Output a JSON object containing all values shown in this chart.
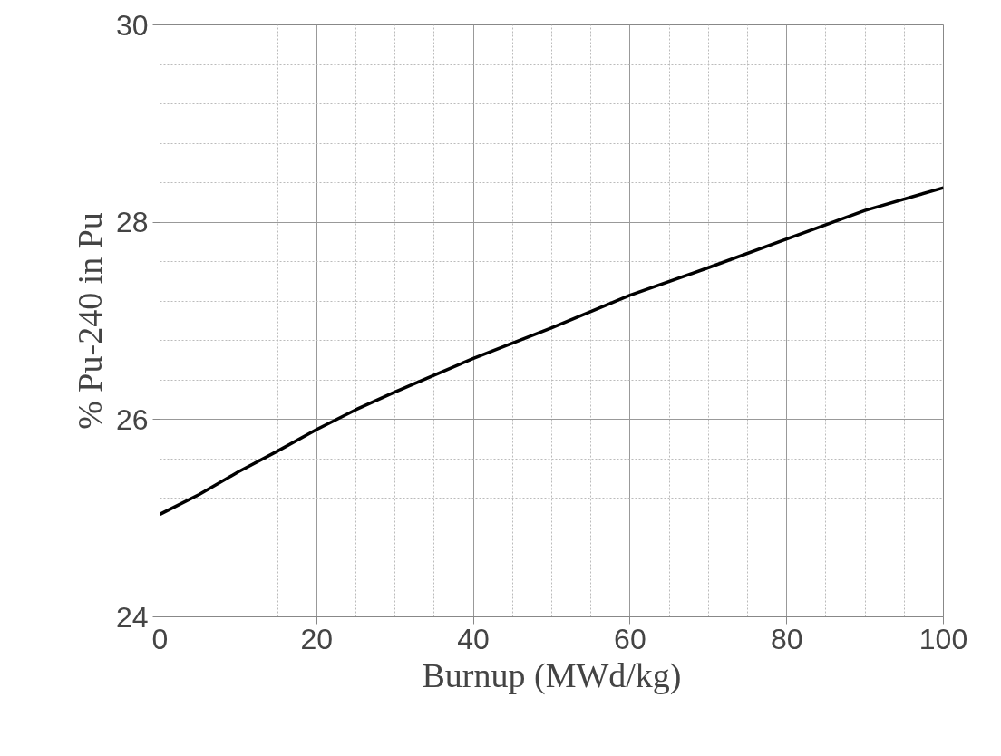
{
  "chart_data": {
    "type": "line",
    "xlabel": "Burnup (MWd/kg)",
    "ylabel": "% Pu-240 in Pu",
    "x": [
      0,
      5,
      10,
      15,
      20,
      25,
      30,
      35,
      40,
      50,
      60,
      70,
      80,
      90,
      100
    ],
    "series": [
      {
        "color": "#000000",
        "values": [
          25.04,
          25.24,
          25.47,
          25.68,
          25.9,
          26.1,
          26.28,
          26.45,
          26.62,
          26.93,
          27.26,
          27.54,
          27.83,
          28.12,
          28.35
        ]
      }
    ],
    "xlim": [
      0,
      100
    ],
    "ylim": [
      24,
      30
    ],
    "xticks": [
      0,
      20,
      40,
      60,
      80,
      100
    ],
    "yticks": [
      24,
      26,
      28,
      30
    ],
    "grid": true,
    "marker": "none",
    "line_style": "solid"
  }
}
